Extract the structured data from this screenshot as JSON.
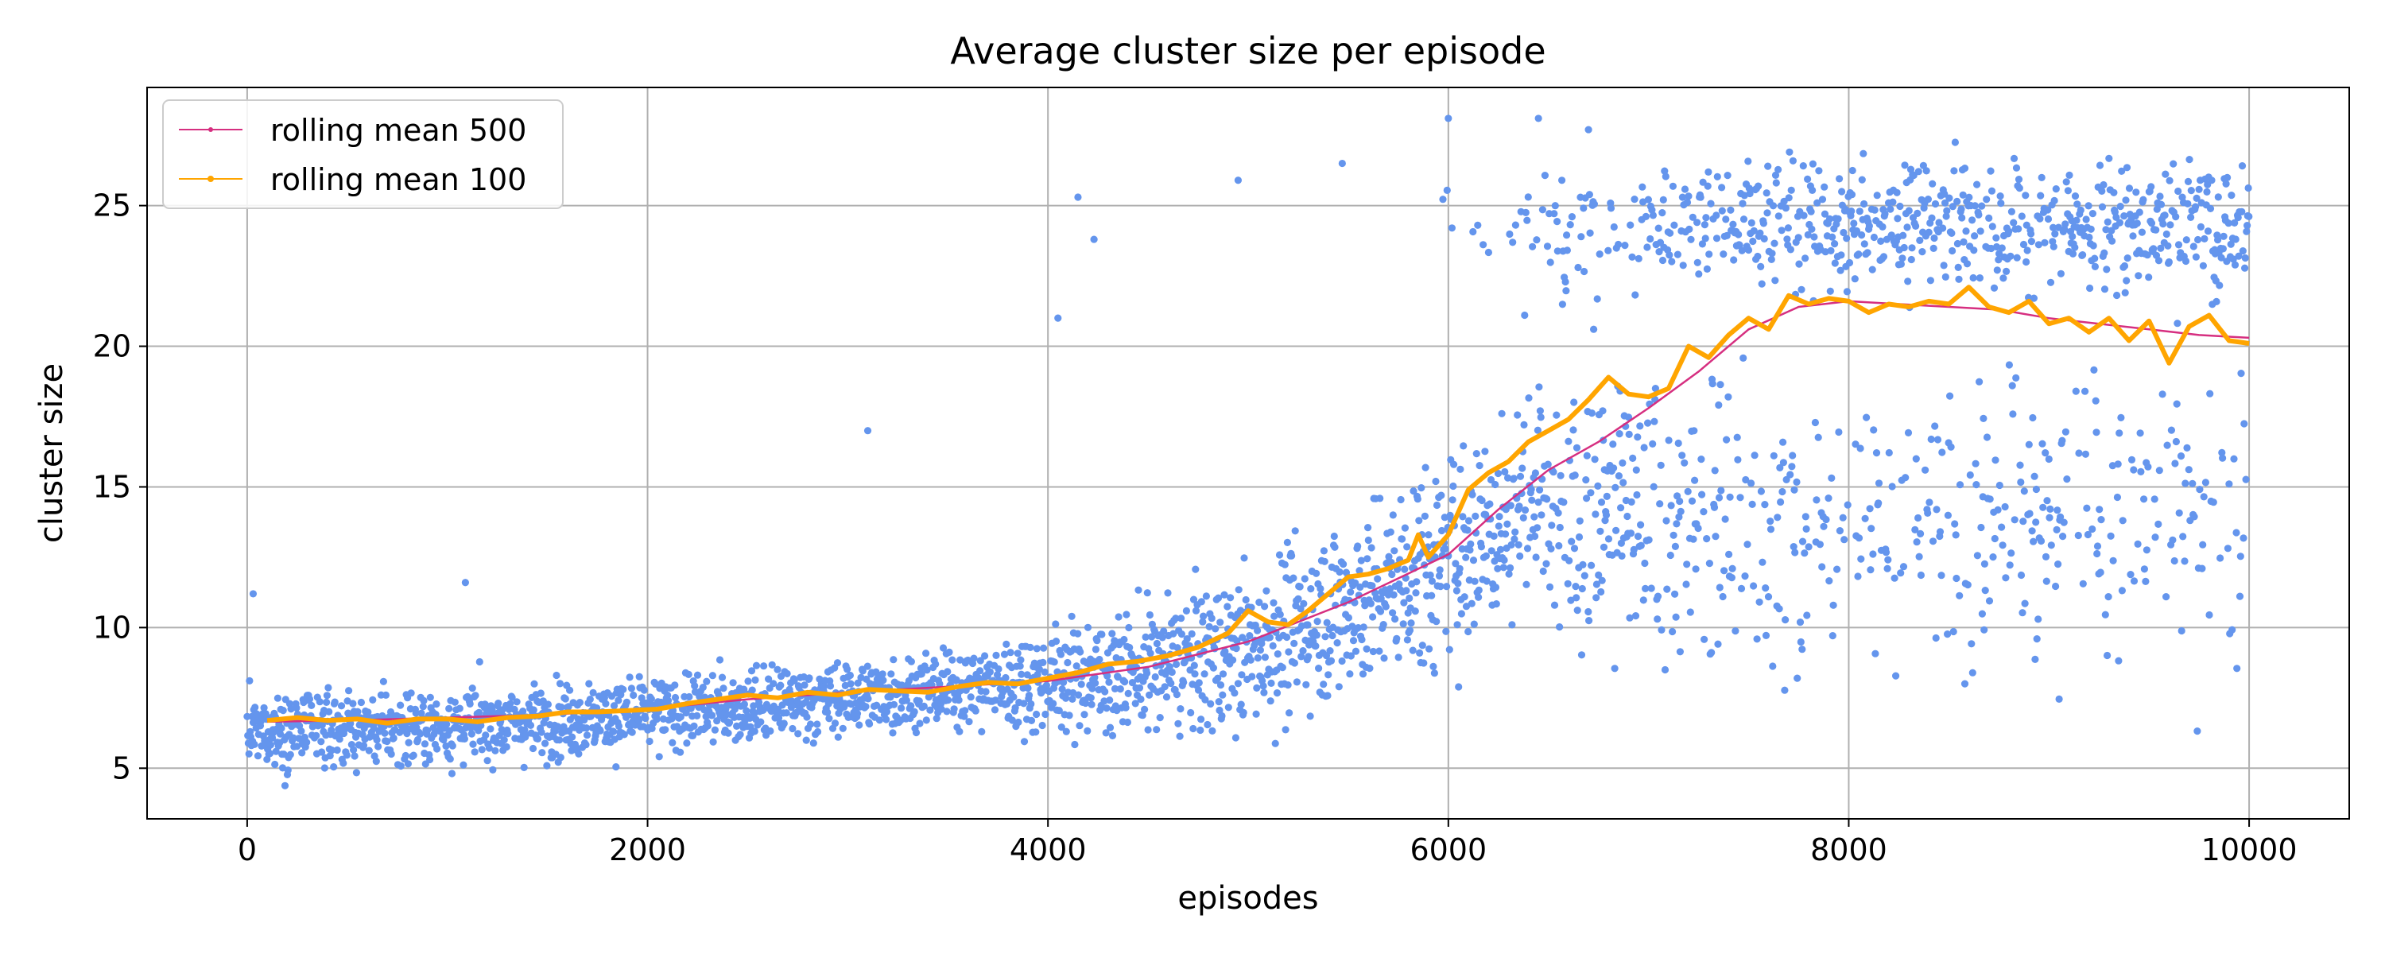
{
  "chart_data": {
    "type": "scatter",
    "title": "Average cluster size per episode",
    "xlabel": "episodes",
    "ylabel": "cluster size",
    "xlim": [
      -500,
      10500
    ],
    "ylim": [
      3.2,
      29.2
    ],
    "xticks": [
      0,
      2000,
      4000,
      6000,
      8000,
      10000
    ],
    "yticks": [
      5,
      10,
      15,
      20,
      25
    ],
    "grid": true,
    "legend_position": "top-left",
    "scatter": {
      "color": "#6495ed",
      "description": "one point per episode, episodes 0 to 10000",
      "trend": {
        "x": [
          0,
          1000,
          2000,
          3000,
          4000,
          4500,
          5000,
          5500,
          6000,
          6500,
          7000,
          7500,
          8000,
          8500,
          9000,
          9500,
          10000
        ],
        "y": [
          6.3,
          6.5,
          6.9,
          7.5,
          8.1,
          8.5,
          9.2,
          10.8,
          12.5,
          15.0,
          17.5,
          20.5,
          21.5,
          21.5,
          21.0,
          20.5,
          20.3
        ]
      },
      "outliers": [
        {
          "x": 3100,
          "y": 17.0
        },
        {
          "x": 4050,
          "y": 21.0
        },
        {
          "x": 4150,
          "y": 25.3
        },
        {
          "x": 4230,
          "y": 23.8
        },
        {
          "x": 4950,
          "y": 25.9
        },
        {
          "x": 5470,
          "y": 26.5
        },
        {
          "x": 6000,
          "y": 28.1
        },
        {
          "x": 6450,
          "y": 28.1
        },
        {
          "x": 6700,
          "y": 27.7
        },
        {
          "x": 8580,
          "y": 8.0
        },
        {
          "x": 1090,
          "y": 11.6
        },
        {
          "x": 30,
          "y": 11.2
        }
      ]
    },
    "series": [
      {
        "name": "rolling mean 500",
        "color": "#d62f80",
        "x": [
          100,
          500,
          1000,
          1500,
          2000,
          2500,
          3000,
          3500,
          4000,
          4500,
          5000,
          5500,
          6000,
          6250,
          6500,
          6750,
          7000,
          7250,
          7500,
          7750,
          8000,
          8250,
          8500,
          8750,
          9000,
          9250,
          9500,
          9750,
          10000
        ],
        "y": [
          6.65,
          6.7,
          6.8,
          6.9,
          7.1,
          7.45,
          7.7,
          7.9,
          8.1,
          8.6,
          9.5,
          10.9,
          12.6,
          14.2,
          15.6,
          16.6,
          17.8,
          19.1,
          20.6,
          21.4,
          21.6,
          21.5,
          21.4,
          21.3,
          21.0,
          20.8,
          20.6,
          20.4,
          20.3
        ]
      },
      {
        "name": "rolling mean 100",
        "color": "#ffa500",
        "x": [
          100,
          250,
          400,
          550,
          700,
          850,
          1000,
          1150,
          1300,
          1450,
          1600,
          1750,
          1900,
          2050,
          2200,
          2350,
          2500,
          2650,
          2800,
          2950,
          3100,
          3250,
          3400,
          3550,
          3700,
          3850,
          4000,
          4150,
          4300,
          4450,
          4600,
          4750,
          4900,
          5000,
          5100,
          5200,
          5300,
          5400,
          5500,
          5600,
          5700,
          5800,
          5850,
          5900,
          6000,
          6100,
          6200,
          6300,
          6400,
          6500,
          6600,
          6700,
          6800,
          6900,
          7000,
          7100,
          7200,
          7300,
          7400,
          7500,
          7600,
          7700,
          7800,
          7900,
          8000,
          8100,
          8200,
          8300,
          8400,
          8500,
          8600,
          8700,
          8800,
          8900,
          9000,
          9100,
          9200,
          9300,
          9400,
          9500,
          9600,
          9700,
          9800,
          9900,
          10000
        ],
        "y": [
          6.7,
          6.8,
          6.7,
          6.75,
          6.6,
          6.75,
          6.75,
          6.65,
          6.8,
          6.85,
          7.0,
          7.0,
          7.05,
          7.1,
          7.3,
          7.45,
          7.6,
          7.5,
          7.7,
          7.6,
          7.8,
          7.75,
          7.7,
          7.9,
          8.05,
          8.0,
          8.2,
          8.4,
          8.7,
          8.8,
          9.0,
          9.3,
          9.8,
          10.6,
          10.2,
          10.1,
          10.6,
          11.2,
          11.8,
          11.9,
          12.1,
          12.4,
          13.3,
          12.5,
          13.3,
          14.9,
          15.5,
          15.9,
          16.6,
          17.0,
          17.4,
          18.1,
          18.9,
          18.3,
          18.2,
          18.5,
          20.0,
          19.6,
          20.4,
          21.0,
          20.6,
          21.8,
          21.5,
          21.7,
          21.6,
          21.2,
          21.5,
          21.4,
          21.6,
          21.5,
          22.1,
          21.4,
          21.2,
          21.6,
          20.8,
          21.0,
          20.5,
          21.0,
          20.2,
          20.9,
          19.4,
          20.7,
          21.1,
          20.2,
          20.1
        ]
      }
    ]
  }
}
